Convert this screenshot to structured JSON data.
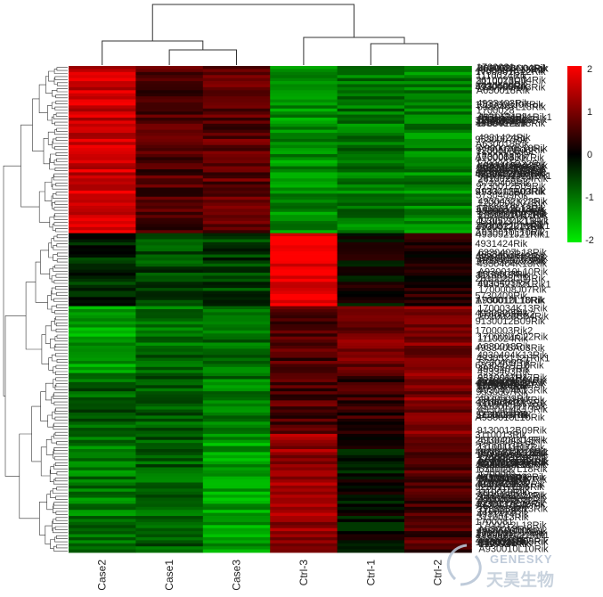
{
  "chart_data": {
    "type": "heatmap",
    "title": "",
    "columns": [
      "Case2",
      "Case1",
      "Case3",
      "Ctrl-3",
      "Ctrl-1",
      "Ctrl-2"
    ],
    "value_range": [
      -2,
      2
    ],
    "colorbar_ticks": [
      "2",
      "1",
      "0",
      "-1",
      "-2"
    ],
    "color_low": "#00ee00",
    "color_mid": "#000000",
    "color_high": "#ff0000",
    "row_clusters": [
      {
        "rows": 55,
        "values": [
          1.6,
          0.6,
          0.7,
          -1.2,
          -1.0,
          -1.1
        ]
      },
      {
        "rows": 24,
        "values": [
          -0.3,
          -0.6,
          -0.5,
          1.9,
          0.0,
          0.3
        ]
      },
      {
        "rows": 22,
        "values": [
          -1.4,
          -0.9,
          -0.9,
          0.6,
          0.9,
          1.0
        ]
      },
      {
        "rows": 20,
        "values": [
          -0.8,
          -0.7,
          -1.0,
          0.6,
          0.4,
          1.0
        ]
      },
      {
        "rows": 39,
        "values": [
          -1.0,
          -0.8,
          -1.3,
          1.2,
          -0.1,
          0.6
        ]
      }
    ],
    "row_labels": [
      "4930404K13Rik",
      "4930586N03Rik",
      "1700008J07Rik",
      "1110024Rik",
      "9530007Rik",
      "A630018Rik",
      "4933403Rik",
      "9130012B09Rik",
      "1700034K13Rik",
      "1700012L18Rik",
      "4931424Rik",
      "1700001C22Rik",
      "2610028C04Rik",
      "5730409Rik",
      "4930509Rik",
      "1700003Rik2",
      "4933405A03Rik",
      "6330407L18Rik",
      "4930407Rik",
      "2310011H17Rik",
      "A930010L10Rik",
      "3110013Rik",
      "4930521J21Rik1",
      "1700028",
      "9230117E06Rik",
      "4930432K22Rik",
      "1700081",
      "2210011Rik"
    ]
  },
  "watermark": {
    "brand_en": "GENESKY",
    "brand_cn": "天昊生物"
  }
}
